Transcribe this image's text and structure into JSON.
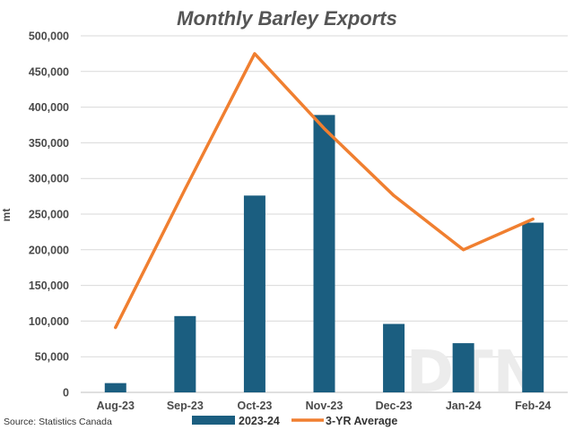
{
  "chart_data": {
    "type": "bar",
    "title": "Monthly Barley Exports",
    "ylabel": "mt",
    "xlabel": "",
    "categories": [
      "Aug-23",
      "Sep-23",
      "Oct-23",
      "Nov-23",
      "Dec-23",
      "Jan-24",
      "Feb-24"
    ],
    "ylim": [
      0,
      500000
    ],
    "yticks": [
      0,
      50000,
      100000,
      150000,
      200000,
      250000,
      300000,
      350000,
      400000,
      450000,
      500000
    ],
    "ytick_labels": [
      "0",
      "50,000",
      "100,000",
      "150,000",
      "200,000",
      "250,000",
      "300,000",
      "350,000",
      "400,000",
      "450,000",
      "500,000"
    ],
    "grid": true,
    "legend_position": "bottom",
    "series": [
      {
        "name": "2023-24",
        "kind": "bar",
        "color": "#1b5e80",
        "values": [
          13000,
          107000,
          276000,
          389000,
          96000,
          69000,
          238000
        ]
      },
      {
        "name": "3-YR Average",
        "kind": "line",
        "color": "#f07f30",
        "values": [
          91000,
          285000,
          475000,
          370000,
          276000,
          200000,
          243000
        ]
      }
    ]
  },
  "source": "Source: Statistics Canada",
  "watermark": "DTN"
}
